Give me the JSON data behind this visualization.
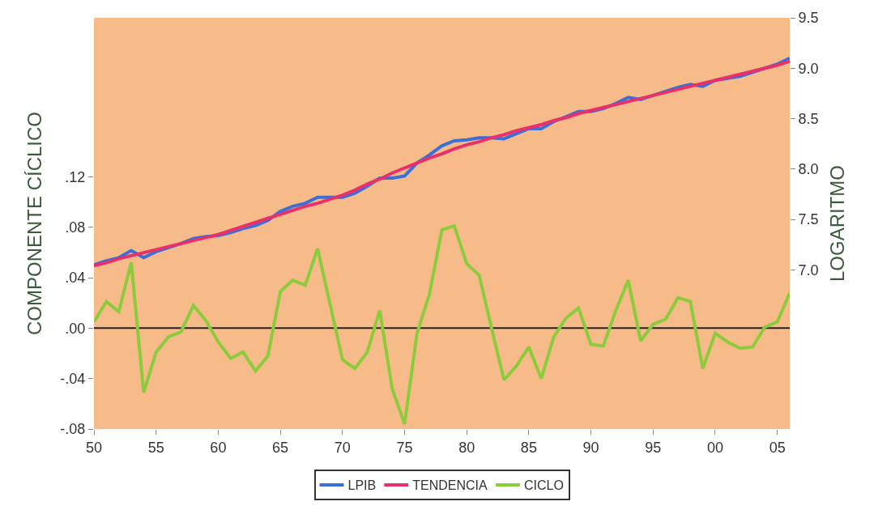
{
  "chart_data": {
    "type": "line",
    "xlabel": null,
    "ylabel": "COMPONENTE CÍCLICO",
    "y2label": "LOGARITMO",
    "x": [
      1950,
      1951,
      1952,
      1953,
      1954,
      1955,
      1956,
      1957,
      1958,
      1959,
      1960,
      1961,
      1962,
      1963,
      1964,
      1965,
      1966,
      1967,
      1968,
      1969,
      1970,
      1971,
      1972,
      1973,
      1974,
      1975,
      1976,
      1977,
      1978,
      1979,
      1980,
      1981,
      1982,
      1983,
      1984,
      1985,
      1986,
      1987,
      1988,
      1989,
      1990,
      1991,
      1992,
      1993,
      1994,
      1995,
      1996,
      1997,
      1998,
      1999,
      2000,
      2001,
      2002,
      2003,
      2004,
      2005,
      2006
    ],
    "series": [
      {
        "name": "LPIB",
        "color": "#3a6fd8",
        "axis": "y2",
        "values": [
          7.05,
          7.09,
          7.12,
          7.19,
          7.12,
          7.18,
          7.22,
          7.26,
          7.31,
          7.33,
          7.34,
          7.37,
          7.41,
          7.44,
          7.49,
          7.58,
          7.63,
          7.66,
          7.72,
          7.72,
          7.72,
          7.76,
          7.83,
          7.91,
          7.91,
          7.93,
          8.06,
          8.14,
          8.23,
          8.28,
          8.29,
          8.31,
          8.31,
          8.3,
          8.35,
          8.4,
          8.4,
          8.47,
          8.52,
          8.57,
          8.57,
          8.6,
          8.65,
          8.71,
          8.69,
          8.73,
          8.77,
          8.81,
          8.84,
          8.82,
          8.88,
          8.9,
          8.92,
          8.96,
          9.0,
          9.04,
          9.1
        ]
      },
      {
        "name": "TENDENCIA",
        "color": "#e8306a",
        "axis": "y2",
        "values": [
          7.04,
          7.07,
          7.11,
          7.14,
          7.17,
          7.2,
          7.23,
          7.26,
          7.29,
          7.32,
          7.35,
          7.39,
          7.43,
          7.47,
          7.51,
          7.55,
          7.59,
          7.63,
          7.66,
          7.7,
          7.74,
          7.79,
          7.85,
          7.9,
          7.96,
          8.01,
          8.06,
          8.11,
          8.15,
          8.2,
          8.24,
          8.27,
          8.31,
          8.34,
          8.38,
          8.41,
          8.44,
          8.48,
          8.51,
          8.55,
          8.58,
          8.61,
          8.64,
          8.67,
          8.7,
          8.73,
          8.76,
          8.79,
          8.82,
          8.85,
          8.88,
          8.91,
          8.94,
          8.97,
          9.0,
          9.03,
          9.07
        ]
      },
      {
        "name": "CICLO",
        "color": "#8ccc3c",
        "axis": "y",
        "values": [
          0.005,
          0.021,
          0.013,
          0.052,
          -0.051,
          -0.019,
          -0.007,
          -0.003,
          0.018,
          0.006,
          -0.011,
          -0.024,
          -0.019,
          -0.034,
          -0.022,
          0.029,
          0.038,
          0.034,
          0.063,
          0.019,
          -0.025,
          -0.032,
          -0.019,
          0.014,
          -0.048,
          -0.076,
          -0.004,
          0.027,
          0.078,
          0.081,
          0.051,
          0.042,
          0.0,
          -0.041,
          -0.03,
          -0.015,
          -0.04,
          -0.007,
          0.008,
          0.016,
          -0.013,
          -0.014,
          0.014,
          0.038,
          -0.01,
          0.003,
          0.007,
          0.024,
          0.021,
          -0.032,
          -0.004,
          -0.011,
          -0.016,
          -0.015,
          0.001,
          0.005,
          0.028
        ]
      }
    ],
    "xlim": [
      1950,
      2006
    ],
    "xticks": [
      {
        "value": 1950,
        "label": "50"
      },
      {
        "value": 1955,
        "label": "55"
      },
      {
        "value": 1960,
        "label": "60"
      },
      {
        "value": 1965,
        "label": "65"
      },
      {
        "value": 1970,
        "label": "70"
      },
      {
        "value": 1975,
        "label": "75"
      },
      {
        "value": 1980,
        "label": "80"
      },
      {
        "value": 1985,
        "label": "85"
      },
      {
        "value": 1990,
        "label": "90"
      },
      {
        "value": 1995,
        "label": "95"
      },
      {
        "value": 2000,
        "label": "00"
      },
      {
        "value": 2005,
        "label": "05"
      }
    ],
    "ylim": [
      -0.08,
      0.246
    ],
    "yticks": [
      {
        "value": -0.08,
        "label": "-.08"
      },
      {
        "value": -0.04,
        "label": "-.04"
      },
      {
        "value": 0,
        "label": ".00"
      },
      {
        "value": 0.04,
        "label": ".04"
      },
      {
        "value": 0.08,
        "label": ".08"
      },
      {
        "value": 0.12,
        "label": ".12"
      }
    ],
    "y2lim": [
      5.42,
      9.5
    ],
    "y2ticks": [
      {
        "value": 7.0,
        "label": "7.0"
      },
      7.5,
      {
        "value": 8.0,
        "label": "8.0"
      },
      8.5,
      {
        "value": 9.0,
        "label": "9.0"
      },
      9.5
    ],
    "ref_lines": [
      {
        "axis": "y",
        "value": 0,
        "color": "#222222"
      }
    ],
    "grid": false,
    "legend": "bottom",
    "line_style": "solid",
    "marker": "none"
  }
}
